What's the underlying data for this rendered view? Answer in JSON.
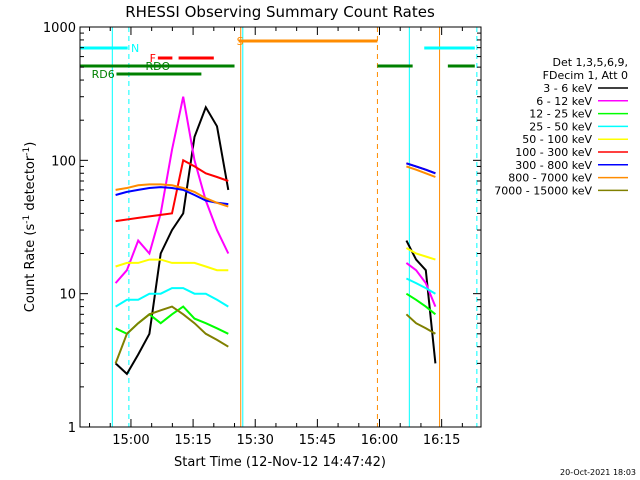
{
  "chart_data": {
    "type": "line",
    "title": "RHESSI Observing Summary Count Rates",
    "xlabel": "Start Time (12-Nov-12 14:47:42)",
    "ylabel_main": "Count Rate (s",
    "ylabel_sup1": "-1",
    "ylabel_mid": " detector",
    "ylabel_sup2": "-1",
    "ylabel_end": ")",
    "y_scale": "log",
    "ylim": [
      1,
      1000
    ],
    "xlim_minutes": [
      -12.3,
      84.5
    ],
    "x_ticks": [
      {
        "m": 0,
        "label": "15:00"
      },
      {
        "m": 15,
        "label": "15:15"
      },
      {
        "m": 30,
        "label": "15:30"
      },
      {
        "m": 45,
        "label": "15:45"
      },
      {
        "m": 60,
        "label": "16:00"
      },
      {
        "m": 75,
        "label": "16:15"
      }
    ],
    "y_ticks": [
      {
        "v": 1,
        "label": "1"
      },
      {
        "v": 10,
        "label": "10"
      },
      {
        "v": 100,
        "label": "100"
      },
      {
        "v": 1000,
        "label": "1000"
      }
    ],
    "legend_header": [
      "Det 1,3,5,6,9,",
      "FDecim 1, Att 0"
    ],
    "legend_position": "right",
    "timestamp": "20-Oct-2021 18:03",
    "segments": [
      {
        "t0": -3.7,
        "t1": 23.5
      },
      {
        "t0": 66.5,
        "t1": 73.5
      }
    ],
    "series": [
      {
        "name": "3 - 6 keV",
        "color": "#000000",
        "values": [
          3,
          2.5,
          3.5,
          5,
          20,
          30,
          40,
          150,
          250,
          180,
          60,
          25,
          18,
          15,
          3
        ]
      },
      {
        "name": "6 - 12 keV",
        "color": "#ff00ff",
        "values": [
          12,
          15,
          25,
          20,
          40,
          120,
          300,
          100,
          50,
          30,
          20,
          17,
          15,
          12,
          8
        ]
      },
      {
        "name": "12 - 25 keV",
        "color": "#00ff00",
        "values": [
          5.5,
          5,
          6,
          7,
          6,
          7,
          8,
          6.5,
          6,
          5.5,
          5,
          10,
          9,
          8,
          7
        ]
      },
      {
        "name": "25 - 50 keV",
        "color": "#00ffff",
        "values": [
          8,
          9,
          9,
          10,
          10,
          11,
          11,
          10,
          10,
          9,
          8,
          13,
          12,
          11,
          10
        ]
      },
      {
        "name": "50 - 100 keV",
        "color": "#ffff00",
        "values": [
          16,
          17,
          17,
          18,
          18,
          17,
          17,
          17,
          16,
          15,
          15,
          22,
          20,
          19,
          18
        ]
      },
      {
        "name": "100 - 300 keV",
        "color": "#ff0000",
        "values": [
          35,
          36,
          37,
          38,
          39,
          40,
          100,
          90,
          80,
          75,
          70,
          95,
          90,
          85,
          80
        ]
      },
      {
        "name": "300 - 800 keV",
        "color": "#0000ff",
        "values": [
          55,
          58,
          60,
          62,
          63,
          62,
          60,
          55,
          50,
          48,
          47,
          95,
          90,
          85,
          80
        ]
      },
      {
        "name": "800 - 7000 keV",
        "color": "#ff8c00",
        "values": [
          60,
          62,
          65,
          66,
          66,
          65,
          62,
          58,
          52,
          48,
          45,
          90,
          85,
          80,
          75
        ]
      },
      {
        "name": "7000 - 15000 keV",
        "color": "#808000",
        "values": [
          3,
          5,
          6,
          7,
          7.5,
          8,
          7,
          6,
          5,
          4.5,
          4,
          7,
          6,
          5.5,
          5
        ]
      }
    ],
    "flag_bars": [
      {
        "label": "N",
        "color": "#00ffff",
        "y": 48,
        "label_m": 0,
        "spans": [
          [
            -12.3,
            -0.8
          ],
          [
            70.8,
            83
          ]
        ]
      },
      {
        "label": "F",
        "color": "#ff0000",
        "y": 58,
        "label_m": 4.5,
        "spans": [
          [
            6.5,
            10
          ],
          [
            11.5,
            20
          ]
        ]
      },
      {
        "label": "S",
        "color": "#ff8c00",
        "y": 41,
        "label_m": 25.5,
        "spans": [
          [
            26,
            59.5
          ]
        ]
      },
      {
        "label": "RDO",
        "color": "#008000",
        "y": 66,
        "label_m": 3.5,
        "spans": [
          [
            -12.3,
            25
          ],
          [
            59.5,
            68
          ],
          [
            76.5,
            83
          ]
        ]
      },
      {
        "label": "RD6",
        "color": "#008000",
        "y": 74,
        "label_m": -9.5,
        "spans": [
          [
            -3.5,
            17
          ]
        ]
      }
    ],
    "marker_lines": [
      {
        "m": -4.5,
        "color": "#00ffff",
        "dash": false
      },
      {
        "m": -0.5,
        "color": "#00ffff",
        "dash": true
      },
      {
        "m": 26.5,
        "color": "#ff8c00",
        "dash": false
      },
      {
        "m": 27,
        "color": "#00ffff",
        "dash": false
      },
      {
        "m": 59.5,
        "color": "#ff8c00",
        "dash": true
      },
      {
        "m": 67.2,
        "color": "#00ffff",
        "dash": false
      },
      {
        "m": 74.5,
        "color": "#ff8c00",
        "dash": false
      },
      {
        "m": 83.5,
        "color": "#00ffff",
        "dash": true
      },
      {
        "m": -12.3,
        "color": "#00ffff",
        "dash": false
      }
    ]
  }
}
